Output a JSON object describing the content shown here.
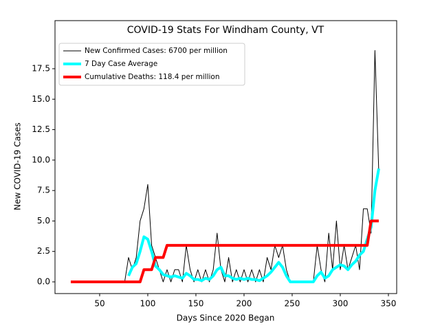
{
  "chart_data": {
    "type": "line",
    "title": "COVID-19 Stats For Windham County, VT",
    "x_label": "Days Since 2020 Began",
    "y_label": "New COVID-19 Cases",
    "x": [
      20,
      24,
      28,
      32,
      36,
      40,
      44,
      48,
      52,
      56,
      60,
      64,
      68,
      72,
      76,
      80,
      84,
      88,
      92,
      96,
      100,
      104,
      108,
      112,
      116,
      120,
      124,
      128,
      132,
      136,
      140,
      144,
      148,
      152,
      156,
      160,
      164,
      168,
      172,
      176,
      180,
      184,
      188,
      192,
      196,
      200,
      204,
      208,
      212,
      216,
      220,
      224,
      228,
      232,
      236,
      240,
      244,
      248,
      252,
      256,
      260,
      264,
      268,
      272,
      276,
      280,
      284,
      288,
      292,
      296,
      300,
      304,
      308,
      312,
      316,
      320,
      324,
      328,
      332,
      336,
      340
    ],
    "series": [
      {
        "name": "New Confirmed Cases: 6700 per million",
        "color": "#000000",
        "width": 1,
        "values": [
          0,
          0,
          0,
          0,
          0,
          0,
          0,
          0,
          0,
          0,
          0,
          0,
          0,
          0,
          0,
          2,
          1,
          2,
          5,
          6,
          8,
          3,
          2,
          1,
          0,
          1,
          0,
          1,
          1,
          0,
          3,
          1,
          0,
          1,
          0,
          1,
          0,
          1,
          4,
          1,
          0,
          2,
          0,
          1,
          0,
          1,
          0,
          1,
          0,
          1,
          0,
          2,
          1,
          3,
          2,
          3,
          1,
          0,
          0,
          0,
          0,
          0,
          0,
          0,
          3,
          1,
          0,
          4,
          1,
          5,
          1,
          3,
          1,
          2,
          3,
          1,
          6,
          6,
          4,
          19,
          9
        ]
      },
      {
        "name": "7 Day Case Average",
        "color": "#00ffff",
        "width": 4,
        "values": [
          null,
          null,
          null,
          null,
          null,
          null,
          null,
          null,
          null,
          null,
          null,
          null,
          null,
          null,
          null,
          0.5,
          1.2,
          1.5,
          2.5,
          3.7,
          3.5,
          2.5,
          1.3,
          1.0,
          0.6,
          0.5,
          0.4,
          0.5,
          0.4,
          0.3,
          0.7,
          0.5,
          0.2,
          0.2,
          0.1,
          0.3,
          0.2,
          0.5,
          1.0,
          1.2,
          0.5,
          0.5,
          0.3,
          0.2,
          0.3,
          0.2,
          0.3,
          0.2,
          0.2,
          0.1,
          0.3,
          0.5,
          0.8,
          1.2,
          1.6,
          1.2,
          0.5,
          0,
          0,
          0,
          0,
          0,
          0,
          0,
          0.5,
          0.8,
          0.3,
          0.5,
          1.0,
          1.2,
          1.4,
          1.3,
          1.0,
          1.4,
          1.7,
          2.2,
          2.5,
          3.5,
          4.5,
          7.5,
          9.3
        ]
      },
      {
        "name": "Cumulative Deaths: 118.4 per million",
        "color": "#ff0000",
        "width": 4,
        "values": [
          0,
          0,
          0,
          0,
          0,
          0,
          0,
          0,
          0,
          0,
          0,
          0,
          0,
          0,
          0,
          0,
          0,
          0,
          0,
          1,
          1,
          1,
          2,
          2,
          2,
          3,
          3,
          3,
          3,
          3,
          3,
          3,
          3,
          3,
          3,
          3,
          3,
          3,
          3,
          3,
          3,
          3,
          3,
          3,
          3,
          3,
          3,
          3,
          3,
          3,
          3,
          3,
          3,
          3,
          3,
          3,
          3,
          3,
          3,
          3,
          3,
          3,
          3,
          3,
          3,
          3,
          3,
          3,
          3,
          3,
          3,
          3,
          3,
          3,
          3,
          3,
          3,
          3,
          5,
          5,
          5
        ]
      }
    ],
    "xlim": [
      3.6,
      358.6
    ],
    "ylim": [
      -0.96,
      21.45
    ],
    "xticks": [
      50,
      100,
      150,
      200,
      250,
      300,
      350
    ],
    "yticks": [
      {
        "value": 0,
        "label": "0.0"
      },
      2.5,
      {
        "value": 5,
        "label": "5.0"
      },
      7.5,
      {
        "value": 10,
        "label": "10.0"
      },
      12.5,
      {
        "value": 15,
        "label": "15.0"
      },
      17.5
    ],
    "legend": "upper left"
  }
}
